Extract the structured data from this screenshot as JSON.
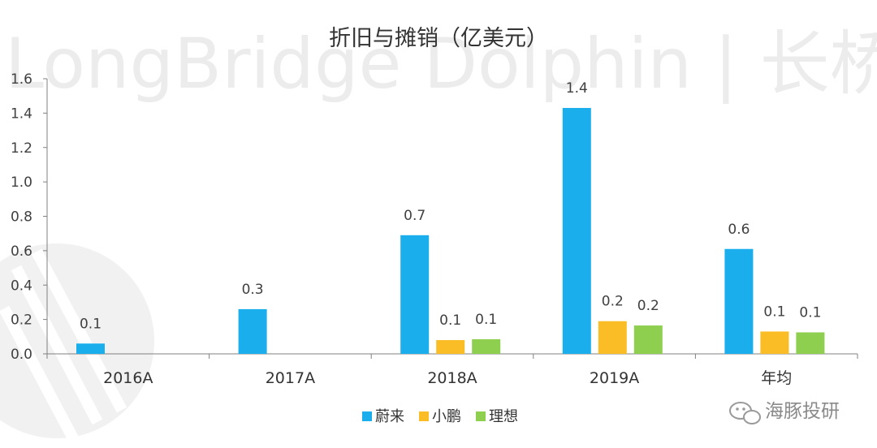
{
  "watermark": {
    "text": "LongBridge Dolphin | 长桥海豚投研",
    "badge_text": "海豚投研"
  },
  "colors": {
    "series": [
      "#1aaeec",
      "#fbbd25",
      "#8ecf4f"
    ],
    "axis": "#808080",
    "text": "#404040",
    "watermark": "#ededed"
  },
  "chart_data": {
    "type": "bar",
    "title": "折旧与摊销（亿美元）",
    "categories": [
      "2016A",
      "2017A",
      "2018A",
      "2019A",
      "年均"
    ],
    "series": [
      {
        "name": "蔚来",
        "values": [
          0.06,
          0.26,
          0.69,
          1.43,
          0.61
        ],
        "labels": [
          "0.1",
          "0.3",
          "0.7",
          "1.4",
          "0.6"
        ]
      },
      {
        "name": "小鹏",
        "values": [
          null,
          null,
          0.08,
          0.19,
          0.13
        ],
        "labels": [
          null,
          null,
          "0.1",
          "0.2",
          "0.1"
        ]
      },
      {
        "name": "理想",
        "values": [
          null,
          null,
          0.085,
          0.165,
          0.125
        ],
        "labels": [
          null,
          null,
          "0.1",
          "0.2",
          "0.1"
        ]
      }
    ],
    "ylim": [
      0,
      1.6
    ],
    "yticks": [
      "0.0",
      "0.2",
      "0.4",
      "0.6",
      "0.8",
      "1.0",
      "1.2",
      "1.4",
      "1.6"
    ],
    "legend_position": "bottom-center",
    "grid": false
  }
}
